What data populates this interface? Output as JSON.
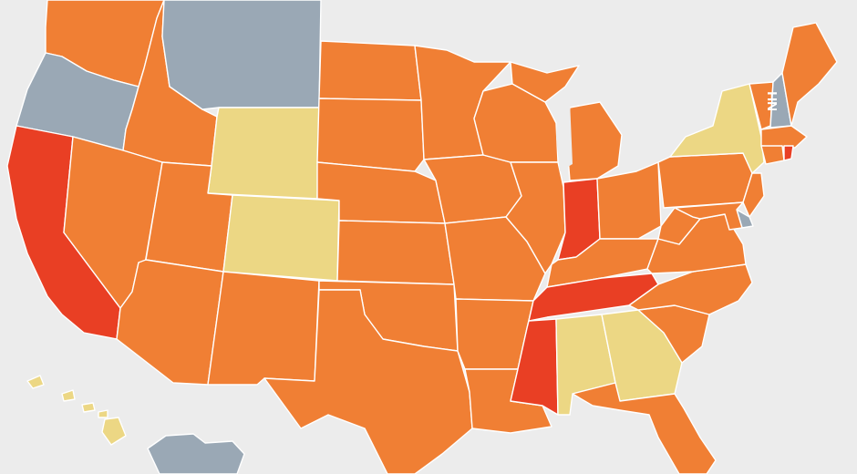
{
  "colors": {
    "background": "#ececec",
    "border": "#ffffff",
    "gray": "#9aa8b5",
    "yellow": "#ecd784",
    "orange": "#f07f34",
    "red": "#e93f24"
  },
  "states": [
    {
      "id": "WA",
      "category": "orange"
    },
    {
      "id": "OR",
      "category": "gray"
    },
    {
      "id": "CA",
      "category": "red"
    },
    {
      "id": "ID",
      "category": "orange"
    },
    {
      "id": "NV",
      "category": "orange"
    },
    {
      "id": "MT",
      "category": "gray"
    },
    {
      "id": "WY",
      "category": "yellow"
    },
    {
      "id": "UT",
      "category": "orange"
    },
    {
      "id": "AZ",
      "category": "orange"
    },
    {
      "id": "CO",
      "category": "yellow"
    },
    {
      "id": "NM",
      "category": "orange"
    },
    {
      "id": "ND",
      "category": "orange"
    },
    {
      "id": "SD",
      "category": "orange"
    },
    {
      "id": "NE",
      "category": "orange"
    },
    {
      "id": "KS",
      "category": "orange"
    },
    {
      "id": "OK",
      "category": "orange"
    },
    {
      "id": "TX",
      "category": "orange"
    },
    {
      "id": "MN",
      "category": "orange"
    },
    {
      "id": "IA",
      "category": "orange"
    },
    {
      "id": "MO",
      "category": "orange"
    },
    {
      "id": "AR",
      "category": "orange"
    },
    {
      "id": "LA",
      "category": "orange"
    },
    {
      "id": "WI",
      "category": "orange"
    },
    {
      "id": "IL",
      "category": "orange"
    },
    {
      "id": "MI",
      "category": "orange"
    },
    {
      "id": "IN",
      "category": "red"
    },
    {
      "id": "OH",
      "category": "orange"
    },
    {
      "id": "KY",
      "category": "orange"
    },
    {
      "id": "TN",
      "category": "red"
    },
    {
      "id": "MS",
      "category": "red"
    },
    {
      "id": "AL",
      "category": "yellow"
    },
    {
      "id": "GA",
      "category": "yellow"
    },
    {
      "id": "FL",
      "category": "orange"
    },
    {
      "id": "SC",
      "category": "orange"
    },
    {
      "id": "NC",
      "category": "orange"
    },
    {
      "id": "VA",
      "category": "orange"
    },
    {
      "id": "WV",
      "category": "orange"
    },
    {
      "id": "PA",
      "category": "orange"
    },
    {
      "id": "NY",
      "category": "yellow"
    },
    {
      "id": "VT",
      "category": "orange"
    },
    {
      "id": "NH",
      "category": "gray"
    },
    {
      "id": "ME",
      "category": "orange"
    },
    {
      "id": "MA",
      "category": "orange"
    },
    {
      "id": "CT",
      "category": "orange"
    },
    {
      "id": "RI",
      "category": "red"
    },
    {
      "id": "NJ",
      "category": "orange"
    },
    {
      "id": "DE",
      "category": "gray"
    },
    {
      "id": "MD",
      "category": "orange"
    },
    {
      "id": "HI",
      "category": "yellow"
    },
    {
      "id": "AK",
      "category": "gray"
    }
  ],
  "labels": {
    "nh": "NH"
  }
}
